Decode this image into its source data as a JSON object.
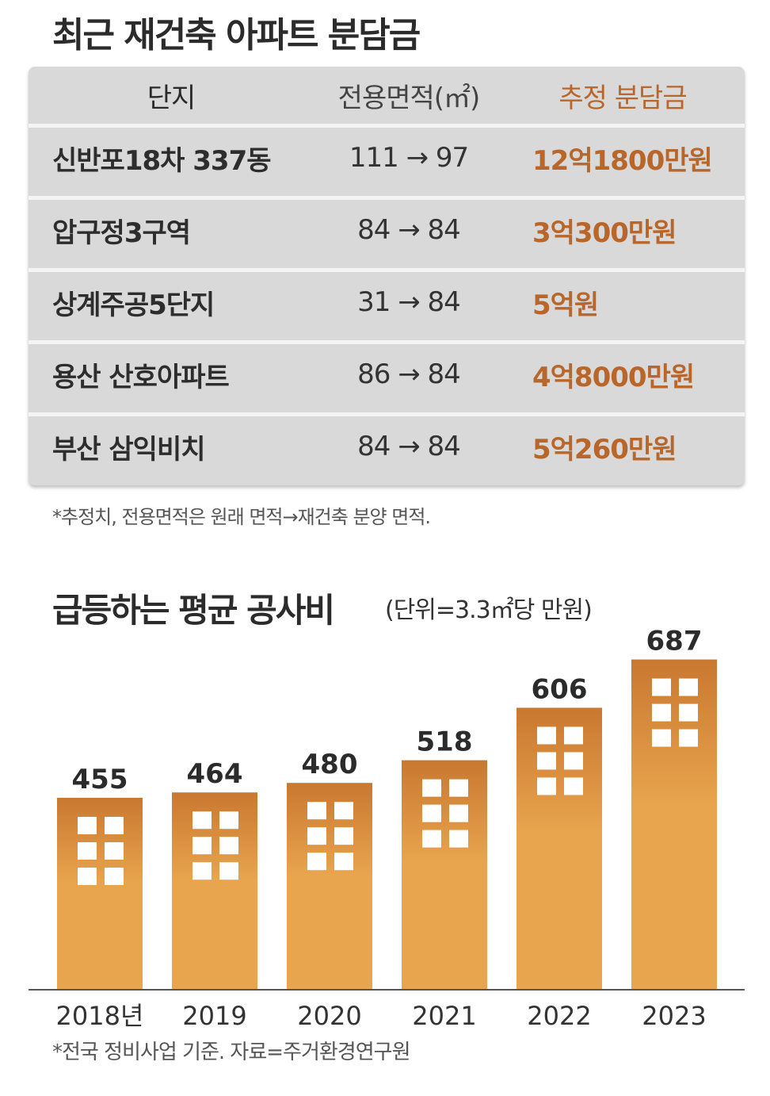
{
  "title": "최근 재건축 아파트 분담금",
  "table": {
    "headers": [
      "단지",
      "전용면적(㎡)",
      "추정 분담금"
    ],
    "rows": [
      {
        "name": "신반포18차 337동",
        "area": "111 → 97",
        "cost": "12억1800만원"
      },
      {
        "name": "압구정3구역",
        "area": "84 → 84",
        "cost": "3억300만원"
      },
      {
        "name": "상계주공5단지",
        "area": "31 → 84",
        "cost": "5억원"
      },
      {
        "name": "용산 산호아파트",
        "area": "86 → 84",
        "cost": "4억8000만원"
      },
      {
        "name": "부산 삼익비치",
        "area": "84 → 84",
        "cost": "5억260만원"
      }
    ],
    "note": "*추정치, 전용면적은 원래 면적→재건축 분양 면적."
  },
  "chart_title": "급등하는 평균 공사비",
  "chart_unit": "(단위=3.3㎡당 만원)",
  "chart_data": {
    "type": "bar",
    "categories": [
      "2018년",
      "2019",
      "2020",
      "2021",
      "2022",
      "2023"
    ],
    "values": [
      455,
      464,
      480,
      518,
      606,
      687
    ],
    "title": "급등하는 평균 공사비",
    "xlabel": "",
    "ylabel": "",
    "unit": "(단위=3.3㎡당 만원)",
    "colors": {
      "bar": "#e9a54e",
      "bar_top": "#c97830",
      "window": "#ffffff"
    }
  },
  "source_note": "*전국 정비사업 기준. 자료=주거환경연구원"
}
